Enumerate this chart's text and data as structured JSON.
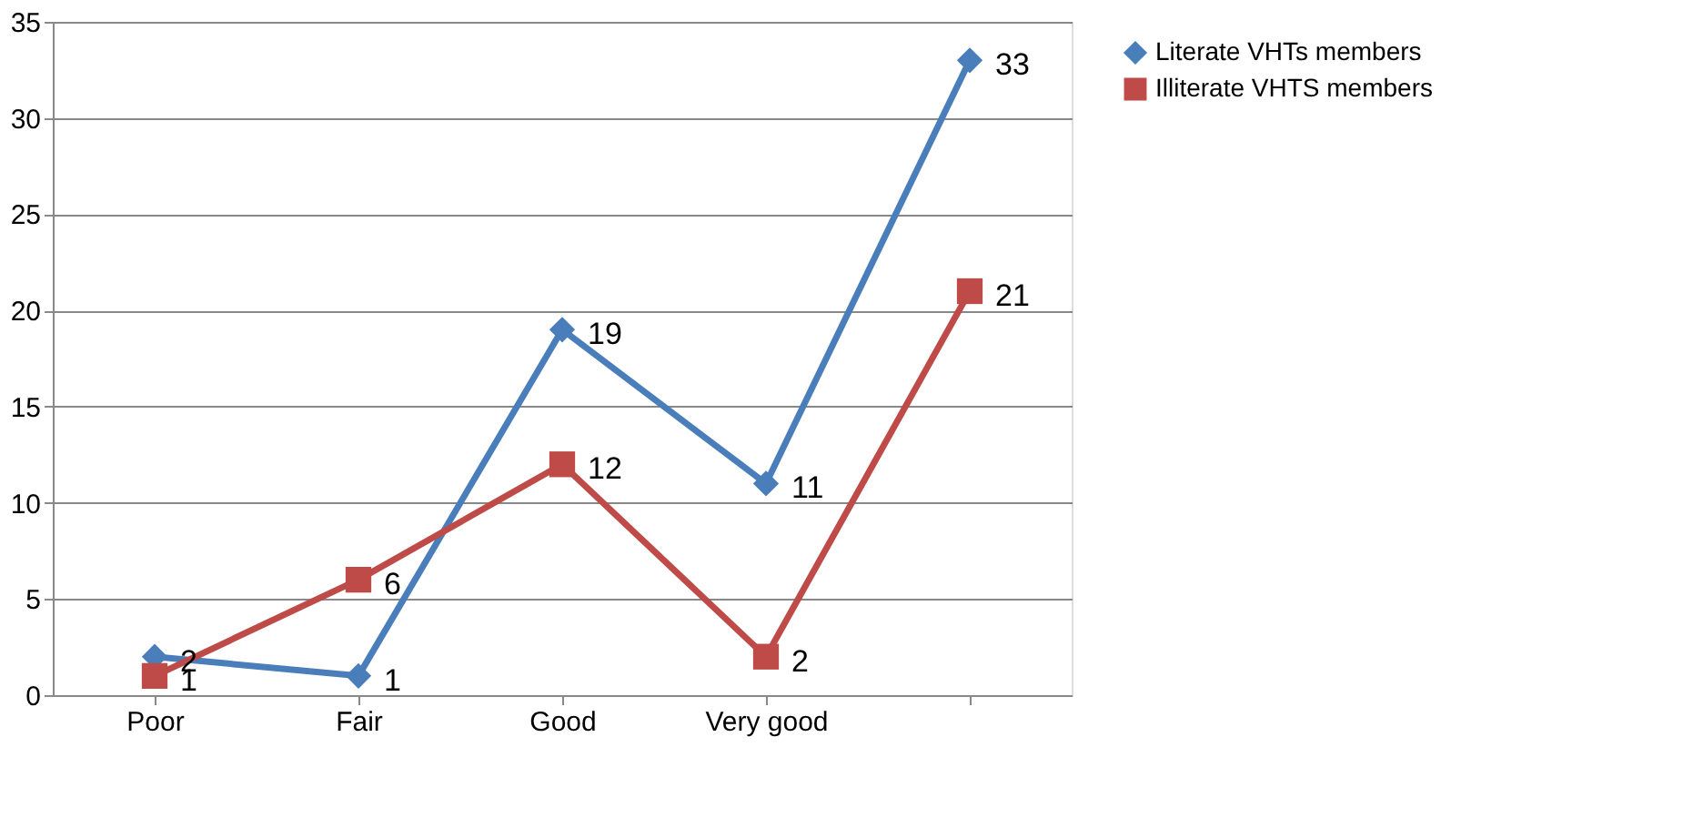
{
  "chart_data": {
    "type": "line",
    "categories": [
      "Poor",
      "Fair",
      "Good",
      "Very good",
      null
    ],
    "series": [
      {
        "name": "Literate VHTs members",
        "color": "#4a7ebb",
        "marker": "diamond",
        "values": [
          2,
          1,
          19,
          11,
          33
        ]
      },
      {
        "name": "Illiterate VHTS members",
        "color": "#be4b48",
        "marker": "square",
        "values": [
          1,
          6,
          12,
          2,
          21
        ]
      }
    ],
    "ylim": [
      0,
      35
    ],
    "yticks": [
      0,
      5,
      10,
      15,
      20,
      25,
      30,
      35
    ],
    "grid": "y",
    "legend": "right",
    "data_labels": true,
    "line_style": "solid"
  }
}
